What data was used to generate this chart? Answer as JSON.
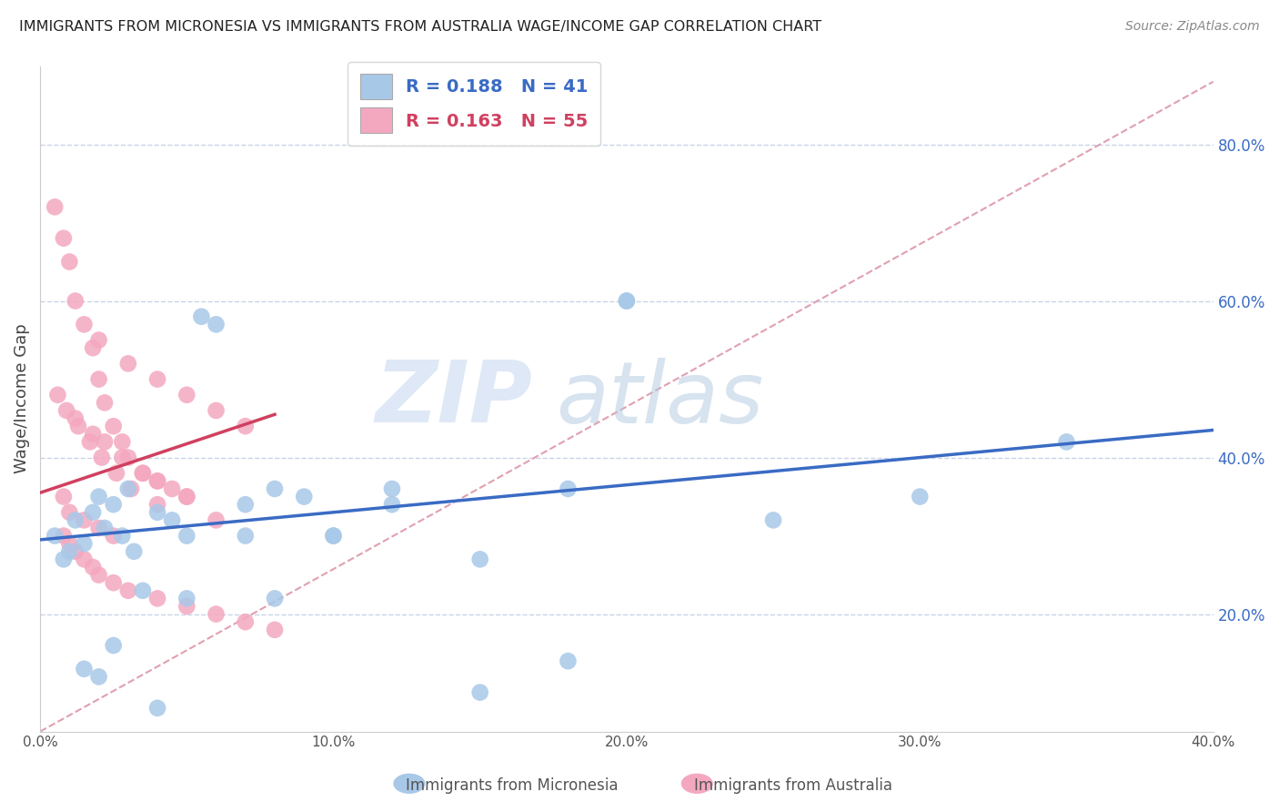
{
  "title": "IMMIGRANTS FROM MICRONESIA VS IMMIGRANTS FROM AUSTRALIA WAGE/INCOME GAP CORRELATION CHART",
  "source": "Source: ZipAtlas.com",
  "ylabel": "Wage/Income Gap",
  "series1_label": "Immigrants from Micronesia",
  "series2_label": "Immigrants from Australia",
  "R1": 0.188,
  "N1": 41,
  "R2": 0.163,
  "N2": 55,
  "color1": "#a8c8e8",
  "color2": "#f4a8c0",
  "trendline1_color": "#3a6bc4",
  "trendline2_color": "#d04060",
  "refline_color": "#e0a0b0",
  "xlim": [
    0.0,
    0.4
  ],
  "ylim": [
    0.05,
    0.9
  ],
  "xticks": [
    0.0,
    0.1,
    0.2,
    0.3,
    0.4
  ],
  "yticks_right": [
    0.2,
    0.4,
    0.6,
    0.8
  ],
  "watermark_zip": "ZIP",
  "watermark_atlas": "atlas",
  "background_color": "#ffffff",
  "grid_color": "#c8d4e8",
  "trendline1_x0": 0.0,
  "trendline1_y0": 0.295,
  "trendline1_x1": 0.4,
  "trendline1_y1": 0.435,
  "trendline2_x0": 0.0,
  "trendline2_y0": 0.355,
  "trendline2_x1": 0.08,
  "trendline2_y1": 0.455,
  "series1_x": [
    0.005,
    0.008,
    0.01,
    0.012,
    0.015,
    0.018,
    0.02,
    0.022,
    0.025,
    0.028,
    0.03,
    0.032,
    0.04,
    0.045,
    0.05,
    0.055,
    0.06,
    0.07,
    0.08,
    0.09,
    0.1,
    0.12,
    0.15,
    0.18,
    0.2,
    0.25,
    0.3,
    0.35,
    0.02,
    0.015,
    0.025,
    0.035,
    0.05,
    0.07,
    0.18,
    0.2,
    0.04,
    0.15,
    0.08,
    0.1,
    0.12
  ],
  "series1_y": [
    0.3,
    0.27,
    0.28,
    0.32,
    0.29,
    0.33,
    0.35,
    0.31,
    0.34,
    0.3,
    0.36,
    0.28,
    0.33,
    0.32,
    0.3,
    0.58,
    0.57,
    0.34,
    0.36,
    0.35,
    0.3,
    0.36,
    0.27,
    0.14,
    0.6,
    0.32,
    0.35,
    0.42,
    0.12,
    0.13,
    0.16,
    0.23,
    0.22,
    0.3,
    0.36,
    0.6,
    0.08,
    0.1,
    0.22,
    0.3,
    0.34
  ],
  "series2_x": [
    0.005,
    0.008,
    0.01,
    0.012,
    0.015,
    0.018,
    0.02,
    0.022,
    0.025,
    0.028,
    0.03,
    0.035,
    0.04,
    0.045,
    0.05,
    0.008,
    0.01,
    0.015,
    0.02,
    0.025,
    0.012,
    0.018,
    0.022,
    0.028,
    0.035,
    0.04,
    0.05,
    0.008,
    0.01,
    0.012,
    0.015,
    0.018,
    0.02,
    0.025,
    0.03,
    0.04,
    0.05,
    0.06,
    0.07,
    0.08,
    0.006,
    0.009,
    0.013,
    0.017,
    0.021,
    0.026,
    0.031,
    0.04,
    0.06,
    0.02,
    0.03,
    0.04,
    0.05,
    0.06,
    0.07
  ],
  "series2_y": [
    0.72,
    0.68,
    0.65,
    0.6,
    0.57,
    0.54,
    0.5,
    0.47,
    0.44,
    0.42,
    0.4,
    0.38,
    0.37,
    0.36,
    0.35,
    0.35,
    0.33,
    0.32,
    0.31,
    0.3,
    0.45,
    0.43,
    0.42,
    0.4,
    0.38,
    0.37,
    0.35,
    0.3,
    0.29,
    0.28,
    0.27,
    0.26,
    0.25,
    0.24,
    0.23,
    0.22,
    0.21,
    0.2,
    0.19,
    0.18,
    0.48,
    0.46,
    0.44,
    0.42,
    0.4,
    0.38,
    0.36,
    0.34,
    0.32,
    0.55,
    0.52,
    0.5,
    0.48,
    0.46,
    0.44
  ]
}
